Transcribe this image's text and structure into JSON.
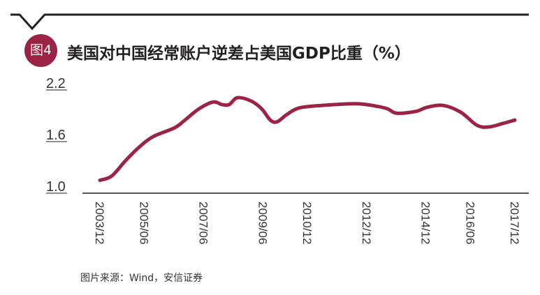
{
  "header": {
    "badge": "图4",
    "title": "美国对中国经常账户逆差占美国GDP比重（%）"
  },
  "source": "图片来源：Wind，安信证券",
  "colors": {
    "line": "#9b2346",
    "badge": "#9b2346",
    "axis": "#231f20"
  },
  "chart_data": {
    "type": "line",
    "title": "美国对中国经常账户逆差占美国GDP比重（%）",
    "xlabel": "",
    "ylabel": "%",
    "ylim": [
      1.0,
      2.2
    ],
    "xlim": [
      2003.92,
      2017.92
    ],
    "grid": false,
    "yticks": [
      {
        "value": 2.2,
        "label": "2.2"
      },
      {
        "value": 1.6,
        "label": "1.6"
      },
      {
        "value": 1.0,
        "label": "1.0"
      }
    ],
    "xticks": [
      {
        "value": 2003.92,
        "label": "2003/12"
      },
      {
        "value": 2005.42,
        "label": "2005/06"
      },
      {
        "value": 2007.42,
        "label": "2007/06"
      },
      {
        "value": 2009.42,
        "label": "2009/06"
      },
      {
        "value": 2010.92,
        "label": "2010/12"
      },
      {
        "value": 2012.92,
        "label": "2012/12"
      },
      {
        "value": 2014.92,
        "label": "2014/12"
      },
      {
        "value": 2016.42,
        "label": "2016/06"
      },
      {
        "value": 2017.92,
        "label": "2017/12"
      }
    ],
    "series": [
      {
        "name": "美国对中国经常账户逆差占美国GDP比重",
        "x": [
          2003.92,
          2004.32,
          2004.79,
          2005.26,
          2005.73,
          2006.44,
          2006.79,
          2007.26,
          2007.74,
          2008.04,
          2008.28,
          2008.56,
          2009.03,
          2009.38,
          2009.67,
          2009.9,
          2010.21,
          2010.63,
          2011.39,
          2012.57,
          2013.27,
          2013.63,
          2013.93,
          2014.57,
          2014.97,
          2015.51,
          2016.1,
          2016.64,
          2017.04,
          2017.51,
          2017.92
        ],
        "values": [
          1.15,
          1.2,
          1.38,
          1.54,
          1.66,
          1.76,
          1.85,
          1.98,
          2.06,
          2.03,
          2.03,
          2.11,
          2.07,
          1.98,
          1.85,
          1.83,
          1.91,
          1.99,
          2.02,
          2.04,
          2.01,
          1.98,
          1.93,
          1.95,
          2.0,
          2.02,
          1.94,
          1.79,
          1.77,
          1.81,
          1.85
        ]
      }
    ]
  }
}
